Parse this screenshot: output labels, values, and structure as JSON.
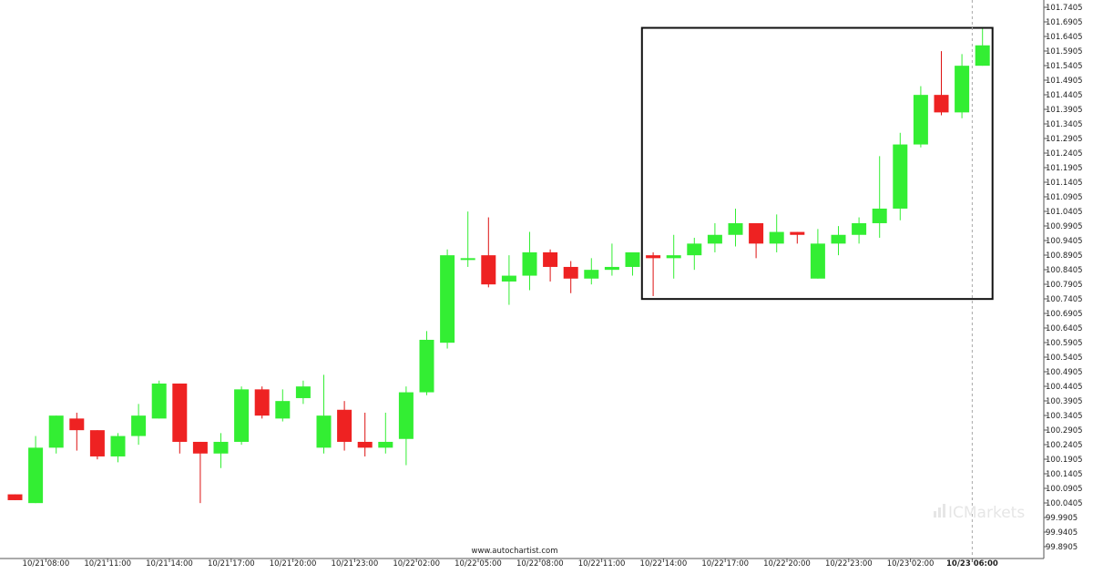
{
  "footer": {
    "source": "www.autochartist.com"
  },
  "watermark": {
    "text": "ICMarkets",
    "icon": "bar-chart-icon"
  },
  "colors": {
    "bull": "#33ee33",
    "bear": "#ee2222",
    "wick_bull": "#33ee33",
    "wick_bear": "#dd1111",
    "frame": "#111111",
    "grid": "#aaaaaa"
  },
  "chart_data": {
    "type": "candlestick",
    "title": "",
    "xlabel": "",
    "ylabel": "",
    "ylim": [
      99.8905,
      101.7405
    ],
    "y_ticks": [
      "101.7405",
      "101.6905",
      "101.6405",
      "101.5905",
      "101.5405",
      "101.4905",
      "101.4405",
      "101.3905",
      "101.3405",
      "101.2905",
      "101.2405",
      "101.1905",
      "101.1405",
      "101.0905",
      "101.0405",
      "100.9905",
      "100.9405",
      "100.8905",
      "100.8405",
      "100.7905",
      "100.7405",
      "100.6905",
      "100.6405",
      "100.5905",
      "100.5405",
      "100.4905",
      "100.4405",
      "100.3905",
      "100.3405",
      "100.2905",
      "100.2405",
      "100.1905",
      "100.1405",
      "100.0905",
      "100.0405",
      "99.9905",
      "99.9405",
      "99.8905"
    ],
    "x_ticks": [
      {
        "label": "10/21 08:00",
        "index": 1
      },
      {
        "label": "10/21 11:00",
        "index": 4
      },
      {
        "label": "10/21 14:00",
        "index": 7
      },
      {
        "label": "10/21 17:00",
        "index": 10
      },
      {
        "label": "10/21 20:00",
        "index": 13
      },
      {
        "label": "10/21 23:00",
        "index": 16
      },
      {
        "label": "10/22 02:00",
        "index": 19
      },
      {
        "label": "10/22 05:00",
        "index": 22
      },
      {
        "label": "10/22 08:00",
        "index": 25
      },
      {
        "label": "10/22 11:00",
        "index": 28
      },
      {
        "label": "10/22 14:00",
        "index": 31
      },
      {
        "label": "10/22 17:00",
        "index": 34
      },
      {
        "label": "10/22 20:00",
        "index": 37
      },
      {
        "label": "10/22 23:00",
        "index": 40
      },
      {
        "label": "10/23 02:00",
        "index": 43
      },
      {
        "label": "10/23 06:00",
        "index": 46,
        "bold": true
      }
    ],
    "candles": [
      {
        "o": 100.07,
        "h": 100.07,
        "l": 100.05,
        "c": 100.05
      },
      {
        "o": 100.04,
        "h": 100.27,
        "l": 100.04,
        "c": 100.23
      },
      {
        "o": 100.23,
        "h": 100.34,
        "l": 100.21,
        "c": 100.34
      },
      {
        "o": 100.33,
        "h": 100.35,
        "l": 100.22,
        "c": 100.29
      },
      {
        "o": 100.29,
        "h": 100.29,
        "l": 100.19,
        "c": 100.2
      },
      {
        "o": 100.2,
        "h": 100.28,
        "l": 100.18,
        "c": 100.27
      },
      {
        "o": 100.27,
        "h": 100.38,
        "l": 100.24,
        "c": 100.34
      },
      {
        "o": 100.33,
        "h": 100.46,
        "l": 100.33,
        "c": 100.45
      },
      {
        "o": 100.45,
        "h": 100.45,
        "l": 100.21,
        "c": 100.25
      },
      {
        "o": 100.25,
        "h": 100.25,
        "l": 100.04,
        "c": 100.21
      },
      {
        "o": 100.21,
        "h": 100.28,
        "l": 100.16,
        "c": 100.25
      },
      {
        "o": 100.25,
        "h": 100.44,
        "l": 100.24,
        "c": 100.43
      },
      {
        "o": 100.43,
        "h": 100.44,
        "l": 100.33,
        "c": 100.34
      },
      {
        "o": 100.33,
        "h": 100.43,
        "l": 100.32,
        "c": 100.39
      },
      {
        "o": 100.4,
        "h": 100.46,
        "l": 100.38,
        "c": 100.44
      },
      {
        "o": 100.23,
        "h": 100.48,
        "l": 100.21,
        "c": 100.34
      },
      {
        "o": 100.36,
        "h": 100.39,
        "l": 100.22,
        "c": 100.25
      },
      {
        "o": 100.25,
        "h": 100.35,
        "l": 100.2,
        "c": 100.23
      },
      {
        "o": 100.23,
        "h": 100.35,
        "l": 100.21,
        "c": 100.25
      },
      {
        "o": 100.26,
        "h": 100.44,
        "l": 100.17,
        "c": 100.42
      },
      {
        "o": 100.42,
        "h": 100.63,
        "l": 100.41,
        "c": 100.6
      },
      {
        "o": 100.59,
        "h": 100.91,
        "l": 100.57,
        "c": 100.89
      },
      {
        "o": 100.88,
        "h": 101.04,
        "l": 100.85,
        "c": 100.88
      },
      {
        "o": 100.89,
        "h": 101.02,
        "l": 100.78,
        "c": 100.79
      },
      {
        "o": 100.8,
        "h": 100.89,
        "l": 100.72,
        "c": 100.82
      },
      {
        "o": 100.82,
        "h": 100.97,
        "l": 100.77,
        "c": 100.9
      },
      {
        "o": 100.9,
        "h": 100.91,
        "l": 100.8,
        "c": 100.85
      },
      {
        "o": 100.85,
        "h": 100.87,
        "l": 100.76,
        "c": 100.81
      },
      {
        "o": 100.81,
        "h": 100.88,
        "l": 100.79,
        "c": 100.84
      },
      {
        "o": 100.84,
        "h": 100.93,
        "l": 100.82,
        "c": 100.85
      },
      {
        "o": 100.85,
        "h": 100.9,
        "l": 100.82,
        "c": 100.9
      },
      {
        "o": 100.89,
        "h": 100.9,
        "l": 100.75,
        "c": 100.88
      },
      {
        "o": 100.88,
        "h": 100.96,
        "l": 100.81,
        "c": 100.89
      },
      {
        "o": 100.89,
        "h": 100.95,
        "l": 100.84,
        "c": 100.93
      },
      {
        "o": 100.93,
        "h": 101.0,
        "l": 100.9,
        "c": 100.96
      },
      {
        "o": 100.96,
        "h": 101.05,
        "l": 100.92,
        "c": 101.0
      },
      {
        "o": 101.0,
        "h": 101.0,
        "l": 100.88,
        "c": 100.93
      },
      {
        "o": 100.93,
        "h": 101.03,
        "l": 100.9,
        "c": 100.97
      },
      {
        "o": 100.97,
        "h": 100.97,
        "l": 100.93,
        "c": 100.96
      },
      {
        "o": 100.81,
        "h": 100.98,
        "l": 100.81,
        "c": 100.93
      },
      {
        "o": 100.93,
        "h": 100.99,
        "l": 100.89,
        "c": 100.96
      },
      {
        "o": 100.96,
        "h": 101.02,
        "l": 100.93,
        "c": 101.0
      },
      {
        "o": 101.0,
        "h": 101.23,
        "l": 100.95,
        "c": 101.05
      },
      {
        "o": 101.05,
        "h": 101.31,
        "l": 101.01,
        "c": 101.27
      },
      {
        "o": 101.27,
        "h": 101.47,
        "l": 101.26,
        "c": 101.44
      },
      {
        "o": 101.44,
        "h": 101.59,
        "l": 101.37,
        "c": 101.38
      },
      {
        "o": 101.38,
        "h": 101.58,
        "l": 101.36,
        "c": 101.54
      },
      {
        "o": 101.54,
        "h": 101.67,
        "l": 101.54,
        "c": 101.61
      }
    ],
    "pattern_box": {
      "start_index": 31,
      "end_index": 47,
      "top": 101.67,
      "bottom": 100.74
    },
    "current_time_index": 46,
    "grid": false,
    "legend": "none"
  }
}
